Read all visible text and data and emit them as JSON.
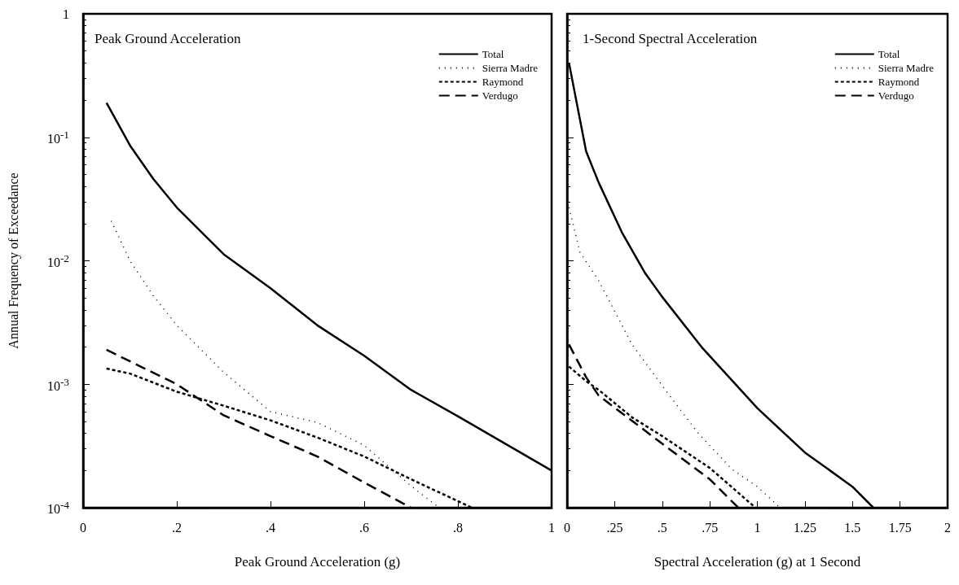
{
  "chart_data": [
    {
      "type": "line",
      "title": "Peak Ground Acceleration",
      "xlabel": "Peak Ground Acceleration (g)",
      "ylabel": "Annual Frequency of Exceedance",
      "log": "y",
      "legend": "top right",
      "grid": false,
      "marker": "none",
      "xlim": [
        0,
        1
      ],
      "xticks": [
        0,
        {
          "value": 0.2,
          "label": ".2"
        },
        {
          "value": 0.4,
          "label": ".4"
        },
        {
          "value": 0.6,
          "label": ".6"
        },
        {
          "value": 0.8,
          "label": ".8"
        },
        1
      ],
      "ylim": [
        0.0001,
        1
      ],
      "yticks": [
        {
          "value": 0.0001,
          "label": "10$^{-4}$"
        },
        {
          "value": 0.001,
          "label": "10$^{-3}$"
        },
        {
          "value": 0.01,
          "label": "10$^{-2}$"
        },
        {
          "value": 0.1,
          "label": "10$^{-1}$"
        },
        1
      ],
      "series": [
        {
          "name": "Total",
          "color": "#000000",
          "line_style": "solid",
          "x": [
            0.05,
            0.1,
            0.15,
            0.2,
            0.3,
            0.4,
            0.5,
            0.6,
            0.7,
            0.8,
            1
          ],
          "values": [
            0.19,
            0.086,
            0.046,
            0.027,
            0.0113,
            0.006,
            0.003,
            0.0017,
            0.0009,
            0.00055,
            0.0002
          ]
        },
        {
          "name": "Sierra Madre",
          "color": "#000000",
          "line_style": "dotted",
          "x": [
            0.06,
            0.1,
            0.15,
            0.2,
            0.3,
            0.4,
            0.5,
            0.6,
            0.7,
            0.76
          ],
          "values": [
            0.021,
            0.01,
            0.0052,
            0.003,
            0.00125,
            0.0006,
            0.00049,
            0.00032,
            0.00015,
            0.0001
          ]
        },
        {
          "name": "Raymond",
          "color": "#000000",
          "line_style": "dashed",
          "x": [
            0.05,
            0.1,
            0.2,
            0.3,
            0.4,
            0.5,
            0.6,
            0.7,
            0.83
          ],
          "values": [
            0.00134,
            0.00122,
            0.00087,
            0.00067,
            0.00051,
            0.00037,
            0.00026,
            0.00017,
            0.0001
          ]
        },
        {
          "name": "Verdugo",
          "color": "#000000",
          "line_style": "dashed",
          "x": [
            0.05,
            0.2,
            0.3,
            0.4,
            0.5,
            0.6,
            0.7
          ],
          "values": [
            0.0019,
            0.001,
            0.00056,
            0.00038,
            0.00026,
            0.00016,
            0.0001
          ]
        }
      ]
    },
    {
      "type": "line",
      "title": "1-Second Spectral Acceleration",
      "xlabel": "Spectral Acceleration (g) at 1 Second",
      "log": "y",
      "legend": "top right",
      "grid": false,
      "marker": "none",
      "tick_labels": "x",
      "xlim": [
        0,
        2
      ],
      "xticks": [
        0,
        {
          "value": 0.25,
          "label": ".25"
        },
        {
          "value": 0.5,
          "label": ".5"
        },
        {
          "value": 0.75,
          "label": ".75"
        },
        1,
        1.25,
        1.5,
        1.75,
        2
      ],
      "ylim": [
        0.0001,
        1
      ],
      "series": [
        {
          "name": "Total",
          "color": "#000000",
          "line_style": "solid",
          "x": [
            0.01,
            0.1,
            0.166,
            0.288,
            0.411,
            0.5,
            0.707,
            1,
            1.25,
            1.5,
            1.61
          ],
          "values": [
            0.4,
            0.077,
            0.043,
            0.017,
            0.0079,
            0.0051,
            0.002,
            0.00064,
            0.00028,
            0.000148,
            0.0001
          ]
        },
        {
          "name": "Sierra Madre",
          "color": "#000000",
          "line_style": "dotted",
          "x": [
            0.01,
            0.068,
            0.166,
            0.341,
            0.516,
            0.69,
            0.865,
            1,
            1.12
          ],
          "values": [
            0.027,
            0.0117,
            0.0069,
            0.0021,
            0.0009,
            0.0004,
            0.000206,
            0.000148,
            0.0001
          ]
        },
        {
          "name": "Raymond",
          "color": "#000000",
          "line_style": "dashed",
          "x": [
            0.01,
            0.1,
            0.166,
            0.341,
            0.5,
            0.75,
            0.99
          ],
          "values": [
            0.00139,
            0.00106,
            0.0009,
            0.00054,
            0.00038,
            0.00021,
            0.0001
          ]
        },
        {
          "name": "Verdugo",
          "color": "#000000",
          "line_style": "dashed",
          "x": [
            0.01,
            0.1,
            0.166,
            0.5,
            0.75,
            0.9
          ],
          "values": [
            0.0021,
            0.00114,
            0.00081,
            0.00033,
            0.00017,
            0.0001
          ]
        }
      ]
    }
  ]
}
